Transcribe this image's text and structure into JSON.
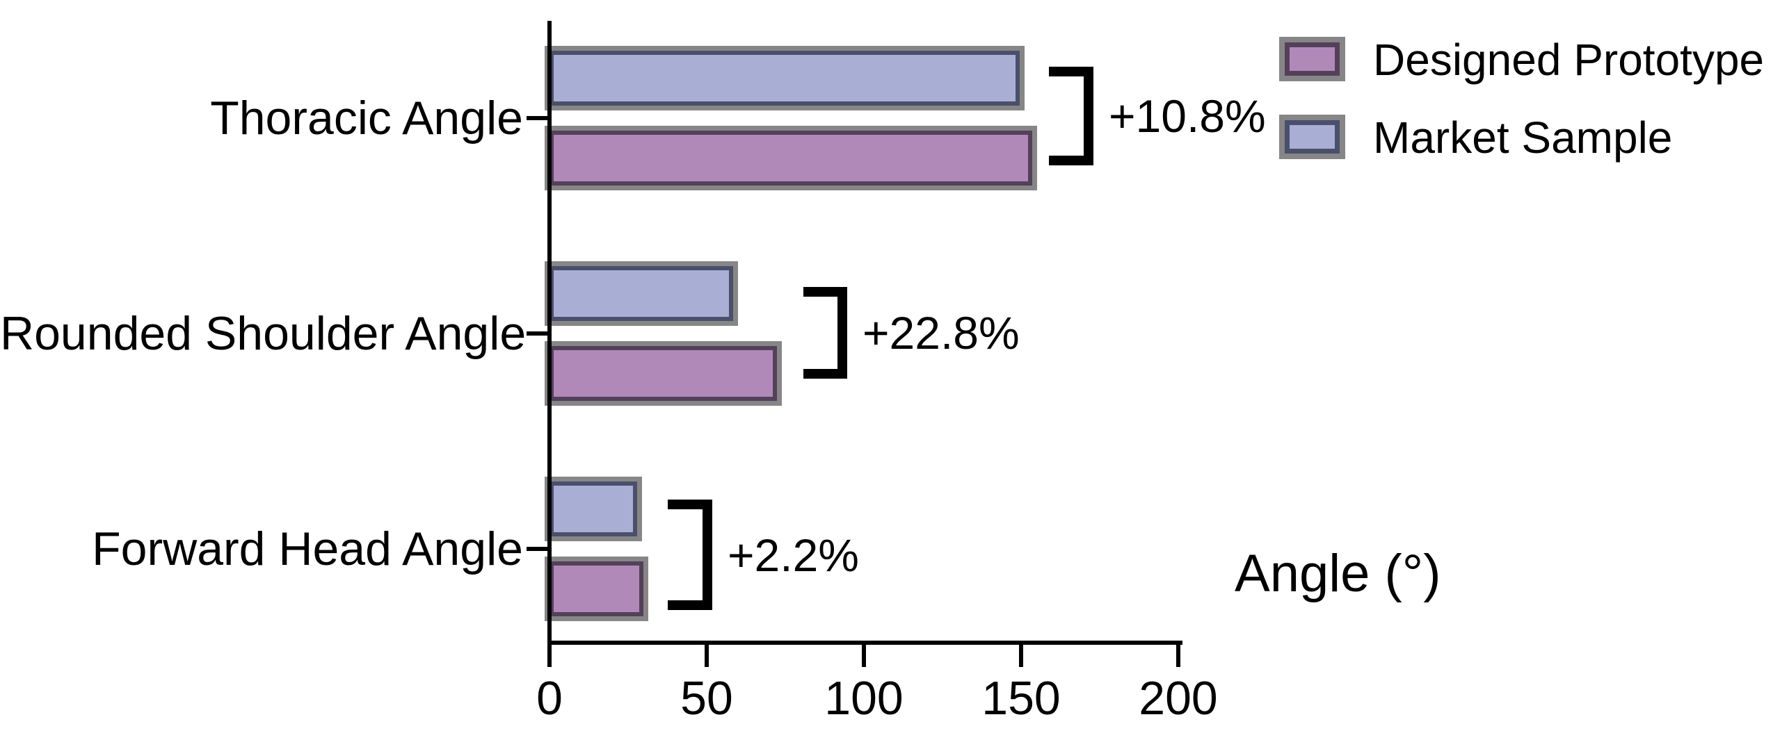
{
  "chart_data": {
    "type": "bar",
    "orientation": "horizontal",
    "title": "",
    "xlabel": "Angle (°)",
    "ylabel": "",
    "xlim": [
      0,
      200
    ],
    "x_ticks": [
      "0",
      "50",
      "100",
      "150",
      "200"
    ],
    "grid": false,
    "legend_position": "top-right",
    "categories": [
      "Thoracic Angle",
      "Rounded Shoulder Angle",
      "Forward Head Angle"
    ],
    "series": [
      {
        "name": "Designed Prototype",
        "values": [
          155,
          74,
          31.5
        ],
        "fill_color": "#b189b9",
        "border_color": "#54405a"
      },
      {
        "name": "Market Sample",
        "values": [
          151,
          60,
          29.5
        ],
        "fill_color": "#a9afd4",
        "border_color": "#4a4f6b"
      }
    ],
    "annotations": [
      {
        "category": "Thoracic Angle",
        "label": "+10.8%"
      },
      {
        "category": "Rounded Shoulder Angle",
        "label": "+22.8%"
      },
      {
        "category": "Forward Head Angle",
        "label": "+2.2%"
      }
    ],
    "colors": {
      "axis": "#000000",
      "bar_shadow_gray": "#868686",
      "annotation_text": "#000000"
    }
  }
}
